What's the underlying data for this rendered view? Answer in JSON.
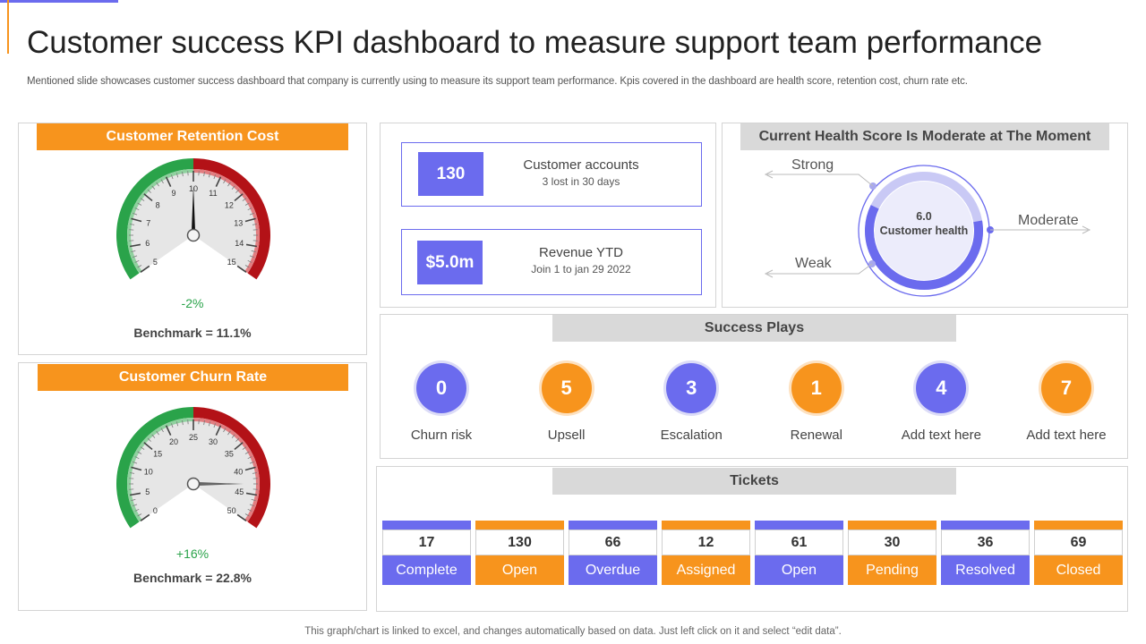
{
  "header": {
    "title": "Customer success KPI dashboard to measure support team performance",
    "subtitle": "Mentioned slide showcases customer success dashboard that company is currently using to measure its support team performance. Kpis covered in the dashboard are health score, retention cost, churn rate etc."
  },
  "footer": {
    "note": "This graph/chart is linked to excel,  and changes automatically based on data. Just left click on it and select “edit data”."
  },
  "colors": {
    "accent": "#6b6bee",
    "orange": "#f7941d",
    "green": "#2aa34a",
    "red": "#b31217",
    "grey": "#d9d9d9"
  },
  "retention": {
    "title": "Customer Retention Cost",
    "ticks": [
      "5",
      "6",
      "7",
      "8",
      "9",
      "10",
      "11",
      "12",
      "13",
      "14",
      "15"
    ],
    "min": 5,
    "max": 15,
    "value": 10,
    "change": "-2%",
    "benchmark": "Benchmark = 11.1%"
  },
  "churn": {
    "title": "Customer Churn Rate",
    "ticks": [
      "0",
      "5",
      "10",
      "15",
      "20",
      "25",
      "30",
      "35",
      "40",
      "45",
      "50"
    ],
    "min": 0,
    "max": 50,
    "value": 43,
    "change": "+16%",
    "benchmark": "Benchmark = 22.8%"
  },
  "accounts": {
    "value": "130",
    "label": "Customer accounts",
    "sub": "3 lost in 30 days"
  },
  "revenue": {
    "value": "$5.0m",
    "label": "Revenue YTD",
    "sub": "Join 1 to jan 29 2022"
  },
  "health": {
    "title": "Current Health Score Is Moderate at The Moment",
    "score": "6.0",
    "score_value": 6.0,
    "score_max": 10,
    "label": "Customer  health",
    "strong": "Strong",
    "moderate": "Moderate",
    "weak": "Weak"
  },
  "plays": {
    "title": "Success Plays",
    "items": [
      {
        "value": "0",
        "label": "Churn risk",
        "color": "#6b6bee"
      },
      {
        "value": "5",
        "label": "Upsell",
        "color": "#f7941d"
      },
      {
        "value": "3",
        "label": "Escalation",
        "color": "#6b6bee"
      },
      {
        "value": "1",
        "label": "Renewal",
        "color": "#f7941d"
      },
      {
        "value": "4",
        "label": "Add text here",
        "color": "#6b6bee"
      },
      {
        "value": "7",
        "label": "Add text here",
        "color": "#f7941d"
      }
    ]
  },
  "tickets": {
    "title": "Tickets",
    "items": [
      {
        "value": "17",
        "label": "Complete",
        "color": "#6b6bee"
      },
      {
        "value": "130",
        "label": "Open",
        "color": "#f7941d"
      },
      {
        "value": "66",
        "label": "Overdue",
        "color": "#6b6bee"
      },
      {
        "value": "12",
        "label": "Assigned",
        "color": "#f7941d"
      },
      {
        "value": "61",
        "label": "Open",
        "color": "#6b6bee"
      },
      {
        "value": "30",
        "label": "Pending",
        "color": "#f7941d"
      },
      {
        "value": "36",
        "label": "Resolved",
        "color": "#6b6bee"
      },
      {
        "value": "69",
        "label": "Closed",
        "color": "#f7941d"
      }
    ]
  }
}
